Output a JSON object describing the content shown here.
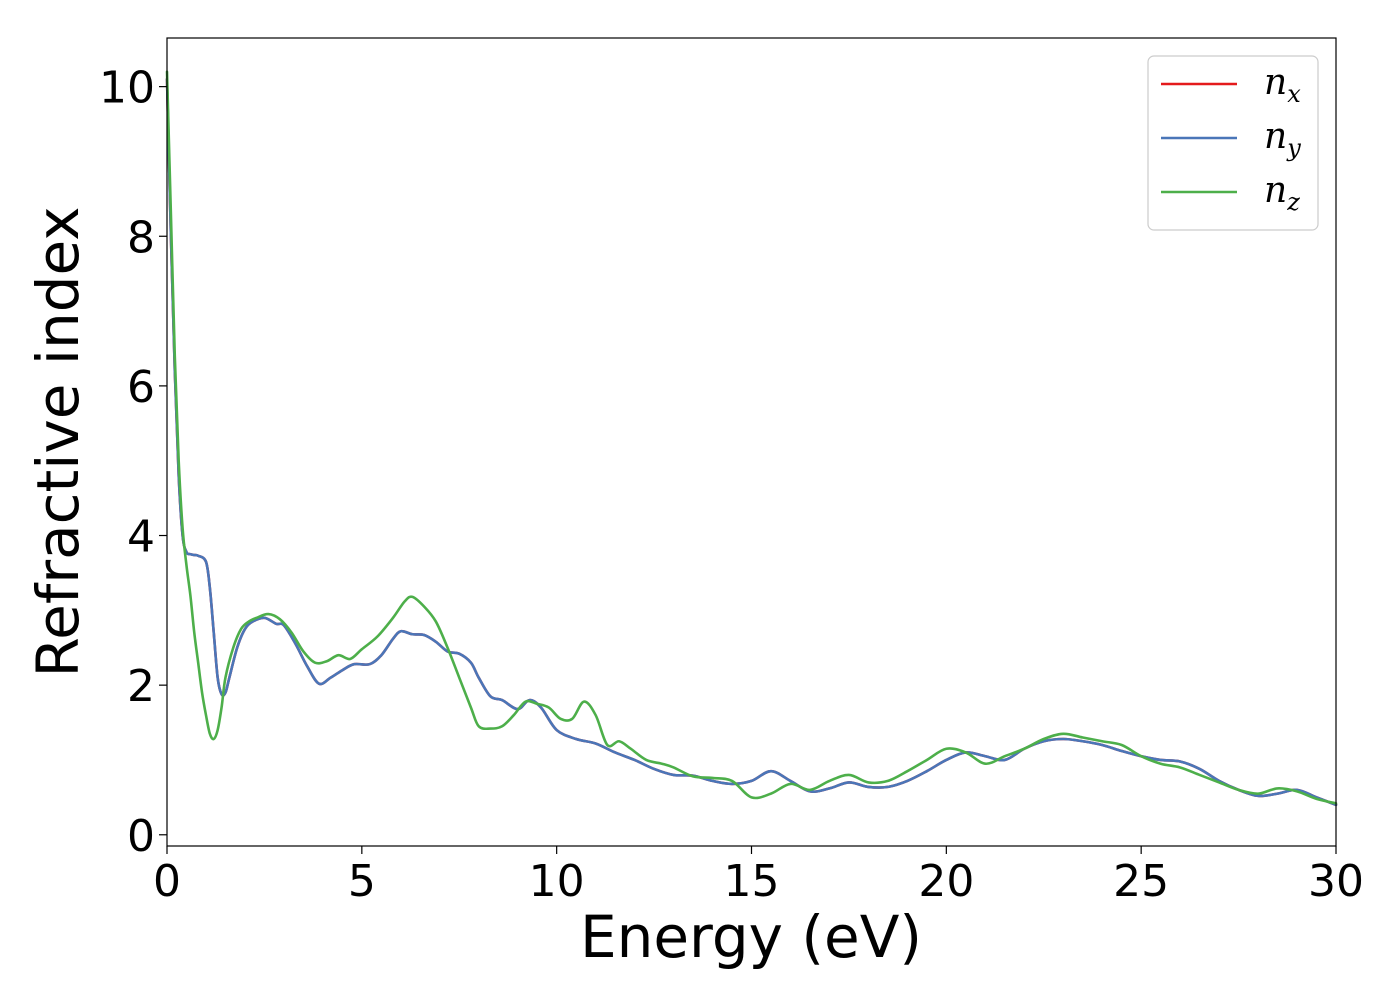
{
  "chart_data": {
    "type": "line",
    "title": "",
    "xlabel": "Energy (eV)",
    "ylabel": "Refractive index",
    "xlim": [
      0,
      30
    ],
    "ylim": [
      -0.15,
      10.65
    ],
    "xticks": [
      0,
      5,
      10,
      15,
      20,
      25,
      30
    ],
    "xtick_labels": [
      "0",
      "5",
      "10",
      "15",
      "20",
      "25",
      "30"
    ],
    "yticks": [
      0,
      2,
      4,
      6,
      8,
      10
    ],
    "ytick_labels": [
      "0",
      "2",
      "4",
      "6",
      "8",
      "10"
    ],
    "grid": false,
    "legend_position": "top-right",
    "series": [
      {
        "name": "n_x",
        "label_base": "n",
        "label_sub": "x",
        "color": "#e41a1c",
        "x": [
          0,
          0.1,
          0.2,
          0.3,
          0.4,
          0.5,
          0.6,
          0.7,
          0.8,
          1.0,
          1.1,
          1.2,
          1.3,
          1.4,
          1.5,
          1.6,
          1.8,
          2.0,
          2.2,
          2.5,
          2.8,
          3.0,
          3.3,
          3.6,
          3.9,
          4.2,
          4.5,
          4.8,
          5.2,
          5.5,
          5.8,
          6.0,
          6.3,
          6.6,
          6.9,
          7.2,
          7.5,
          7.8,
          8.0,
          8.3,
          8.6,
          9.0,
          9.3,
          9.6,
          10.0,
          10.5,
          11.0,
          11.5,
          12.0,
          12.5,
          13.0,
          13.5,
          14.0,
          14.5,
          15.0,
          15.5,
          16.0,
          16.5,
          17.0,
          17.5,
          18.0,
          18.5,
          19.0,
          19.5,
          20.0,
          20.5,
          21.0,
          21.5,
          22.0,
          22.5,
          23.0,
          23.5,
          24.0,
          24.5,
          25.0,
          25.5,
          26.0,
          26.5,
          27.0,
          27.5,
          28.0,
          28.5,
          29.0,
          29.5,
          30.0
        ],
        "y": [
          10.1,
          8.0,
          6.2,
          4.8,
          4.0,
          3.78,
          3.75,
          3.74,
          3.73,
          3.65,
          3.3,
          2.7,
          2.1,
          1.88,
          1.9,
          2.1,
          2.5,
          2.75,
          2.85,
          2.9,
          2.82,
          2.8,
          2.55,
          2.25,
          2.02,
          2.1,
          2.2,
          2.28,
          2.28,
          2.4,
          2.62,
          2.72,
          2.68,
          2.67,
          2.58,
          2.45,
          2.42,
          2.3,
          2.1,
          1.85,
          1.8,
          1.68,
          1.8,
          1.7,
          1.4,
          1.28,
          1.22,
          1.1,
          1.0,
          0.88,
          0.8,
          0.79,
          0.72,
          0.68,
          0.72,
          0.85,
          0.72,
          0.58,
          0.62,
          0.7,
          0.64,
          0.64,
          0.72,
          0.85,
          1.0,
          1.1,
          1.05,
          1.0,
          1.15,
          1.25,
          1.28,
          1.25,
          1.2,
          1.12,
          1.05,
          1.0,
          0.98,
          0.88,
          0.72,
          0.6,
          0.52,
          0.55,
          0.6,
          0.5,
          0.4
        ]
      },
      {
        "name": "n_y",
        "label_base": "n",
        "label_sub": "y",
        "color": "#4a76b8",
        "x": [
          0,
          0.1,
          0.2,
          0.3,
          0.4,
          0.5,
          0.6,
          0.7,
          0.8,
          1.0,
          1.1,
          1.2,
          1.3,
          1.4,
          1.5,
          1.6,
          1.8,
          2.0,
          2.2,
          2.5,
          2.8,
          3.0,
          3.3,
          3.6,
          3.9,
          4.2,
          4.5,
          4.8,
          5.2,
          5.5,
          5.8,
          6.0,
          6.3,
          6.6,
          6.9,
          7.2,
          7.5,
          7.8,
          8.0,
          8.3,
          8.6,
          9.0,
          9.3,
          9.6,
          10.0,
          10.5,
          11.0,
          11.5,
          12.0,
          12.5,
          13.0,
          13.5,
          14.0,
          14.5,
          15.0,
          15.5,
          16.0,
          16.5,
          17.0,
          17.5,
          18.0,
          18.5,
          19.0,
          19.5,
          20.0,
          20.5,
          21.0,
          21.5,
          22.0,
          22.5,
          23.0,
          23.5,
          24.0,
          24.5,
          25.0,
          25.5,
          26.0,
          26.5,
          27.0,
          27.5,
          28.0,
          28.5,
          29.0,
          29.5,
          30.0
        ],
        "y": [
          10.1,
          8.0,
          6.2,
          4.8,
          4.0,
          3.78,
          3.75,
          3.74,
          3.73,
          3.65,
          3.3,
          2.7,
          2.1,
          1.88,
          1.9,
          2.1,
          2.5,
          2.75,
          2.85,
          2.9,
          2.82,
          2.8,
          2.55,
          2.25,
          2.02,
          2.1,
          2.2,
          2.28,
          2.28,
          2.4,
          2.62,
          2.72,
          2.68,
          2.67,
          2.58,
          2.45,
          2.42,
          2.3,
          2.1,
          1.85,
          1.8,
          1.68,
          1.8,
          1.7,
          1.4,
          1.28,
          1.22,
          1.1,
          1.0,
          0.88,
          0.8,
          0.79,
          0.72,
          0.68,
          0.72,
          0.85,
          0.72,
          0.58,
          0.62,
          0.7,
          0.64,
          0.64,
          0.72,
          0.85,
          1.0,
          1.1,
          1.05,
          1.0,
          1.15,
          1.25,
          1.28,
          1.25,
          1.2,
          1.12,
          1.05,
          1.0,
          0.98,
          0.88,
          0.72,
          0.6,
          0.52,
          0.55,
          0.6,
          0.5,
          0.4
        ]
      },
      {
        "name": "n_z",
        "label_base": "n",
        "label_sub": "z",
        "color": "#4daf4a",
        "x": [
          0,
          0.1,
          0.2,
          0.3,
          0.4,
          0.5,
          0.6,
          0.7,
          0.8,
          0.9,
          1.0,
          1.1,
          1.2,
          1.3,
          1.4,
          1.5,
          1.7,
          1.9,
          2.1,
          2.3,
          2.6,
          2.9,
          3.2,
          3.5,
          3.8,
          4.1,
          4.4,
          4.7,
          5.0,
          5.4,
          5.8,
          6.1,
          6.3,
          6.6,
          6.9,
          7.2,
          7.5,
          7.8,
          8.0,
          8.3,
          8.6,
          8.9,
          9.2,
          9.5,
          9.8,
          10.1,
          10.4,
          10.7,
          11.0,
          11.3,
          11.6,
          11.9,
          12.3,
          12.7,
          13.0,
          13.5,
          14.0,
          14.5,
          15.0,
          15.5,
          16.0,
          16.5,
          17.0,
          17.5,
          18.0,
          18.5,
          19.0,
          19.5,
          20.0,
          20.5,
          21.0,
          21.5,
          22.0,
          22.5,
          23.0,
          23.5,
          24.0,
          24.5,
          25.0,
          25.5,
          26.0,
          26.5,
          27.0,
          27.5,
          28.0,
          28.5,
          29.0,
          29.5,
          30.0
        ],
        "y": [
          10.2,
          8.3,
          6.4,
          5.0,
          4.1,
          3.6,
          3.2,
          2.7,
          2.3,
          1.9,
          1.6,
          1.35,
          1.28,
          1.4,
          1.7,
          2.1,
          2.5,
          2.75,
          2.85,
          2.9,
          2.95,
          2.88,
          2.7,
          2.45,
          2.3,
          2.32,
          2.4,
          2.35,
          2.48,
          2.65,
          2.9,
          3.12,
          3.18,
          3.05,
          2.85,
          2.5,
          2.1,
          1.7,
          1.45,
          1.42,
          1.45,
          1.6,
          1.78,
          1.75,
          1.7,
          1.55,
          1.55,
          1.78,
          1.6,
          1.2,
          1.25,
          1.15,
          1.0,
          0.95,
          0.9,
          0.78,
          0.76,
          0.72,
          0.5,
          0.55,
          0.68,
          0.6,
          0.72,
          0.8,
          0.7,
          0.72,
          0.85,
          1.0,
          1.15,
          1.1,
          0.95,
          1.05,
          1.15,
          1.28,
          1.35,
          1.3,
          1.25,
          1.2,
          1.05,
          0.95,
          0.9,
          0.8,
          0.7,
          0.6,
          0.55,
          0.62,
          0.58,
          0.48,
          0.42
        ]
      }
    ]
  }
}
